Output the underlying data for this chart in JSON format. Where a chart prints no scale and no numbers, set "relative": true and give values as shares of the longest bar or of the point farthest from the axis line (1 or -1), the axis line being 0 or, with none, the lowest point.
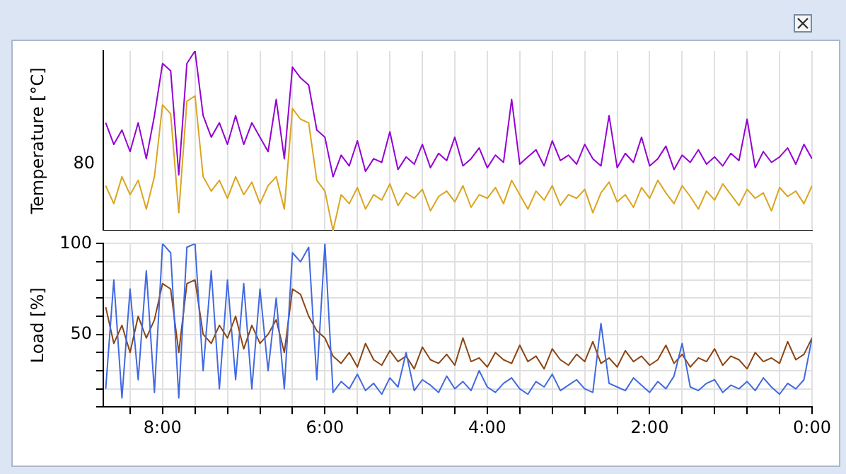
{
  "chart_data": [
    {
      "type": "line",
      "ylabel": "Temperature [°C]",
      "relative": true,
      "annotations": [
        "80"
      ],
      "grid": "x",
      "legend": false,
      "tick_labels": "y",
      "marker": "none",
      "line_style": "solid",
      "x": [
        8.7,
        8.6,
        8.5,
        8.4,
        8.3,
        8.2,
        8.1,
        8.0,
        7.9,
        7.8,
        7.7,
        7.6,
        7.5,
        7.4,
        7.3,
        7.2,
        7.1,
        7.0,
        6.9,
        6.8,
        6.7,
        6.6,
        6.5,
        6.4,
        6.3,
        6.2,
        6.1,
        6.0,
        5.9,
        5.8,
        5.7,
        5.6,
        5.5,
        5.4,
        5.3,
        5.2,
        5.1,
        5.0,
        4.9,
        4.8,
        4.7,
        4.6,
        4.5,
        4.4,
        4.3,
        4.2,
        4.1,
        4.0,
        3.9,
        3.8,
        3.7,
        3.6,
        3.5,
        3.4,
        3.3,
        3.2,
        3.1,
        3.0,
        2.9,
        2.8,
        2.7,
        2.6,
        2.5,
        2.4,
        2.3,
        2.2,
        2.1,
        2.0,
        1.9,
        1.8,
        1.7,
        1.6,
        1.5,
        1.4,
        1.3,
        1.2,
        1.1,
        1.0,
        0.9,
        0.8,
        0.7,
        0.6,
        0.5,
        0.4,
        0.3,
        0.2,
        0.1,
        0.0
      ],
      "xlim": [
        8.73,
        0
      ],
      "xticks": [
        {
          "value": 8.4,
          "label": null
        },
        {
          "value": 8,
          "label": null
        },
        {
          "value": 7.6,
          "label": null
        },
        {
          "value": 7.2,
          "label": null
        },
        {
          "value": 6.8,
          "label": null
        },
        {
          "value": 6.4,
          "label": null
        },
        {
          "value": 6,
          "label": null
        },
        {
          "value": 5.6,
          "label": null
        },
        {
          "value": 5.2,
          "label": null
        },
        {
          "value": 4.8,
          "label": null
        },
        {
          "value": 4.4,
          "label": null
        },
        {
          "value": 4,
          "label": null
        },
        {
          "value": 3.6,
          "label": null
        },
        {
          "value": 3.2,
          "label": null
        },
        {
          "value": 2.8,
          "label": null
        },
        {
          "value": 2.4,
          "label": null
        },
        {
          "value": 2,
          "label": null
        },
        {
          "value": 1.6,
          "label": null
        },
        {
          "value": 1.2,
          "label": null
        },
        {
          "value": 0.8,
          "label": null
        },
        {
          "value": 0.4,
          "label": null
        },
        {
          "value": 0,
          "label": null
        }
      ],
      "series": [
        {
          "color": "#daa520",
          "values": [
            0.25,
            0.15,
            0.3,
            0.2,
            0.28,
            0.12,
            0.3,
            0.7,
            0.65,
            0.1,
            0.72,
            0.75,
            0.3,
            0.22,
            0.28,
            0.18,
            0.3,
            0.2,
            0.27,
            0.15,
            0.25,
            0.3,
            0.12,
            0.68,
            0.62,
            0.6,
            0.28,
            0.22,
            0,
            0.2,
            0.15,
            0.24,
            0.12,
            0.2,
            0.17,
            0.26,
            0.14,
            0.21,
            0.18,
            0.23,
            0.11,
            0.19,
            0.22,
            0.16,
            0.25,
            0.13,
            0.2,
            0.18,
            0.24,
            0.15,
            0.28,
            0.2,
            0.12,
            0.22,
            0.17,
            0.25,
            0.14,
            0.2,
            0.18,
            0.23,
            0.1,
            0.21,
            0.27,
            0.16,
            0.2,
            0.13,
            0.24,
            0.18,
            0.28,
            0.21,
            0.15,
            0.25,
            0.19,
            0.12,
            0.22,
            0.17,
            0.26,
            0.2,
            0.14,
            0.23,
            0.18,
            0.21,
            0.11,
            0.24,
            0.19,
            0.22,
            0.15,
            0.25
          ]
        },
        {
          "color": "#9400d3",
          "values": [
            0.6,
            0.48,
            0.56,
            0.44,
            0.6,
            0.4,
            0.64,
            0.93,
            0.89,
            0.31,
            0.93,
            1,
            0.64,
            0.52,
            0.6,
            0.48,
            0.64,
            0.48,
            0.6,
            0.52,
            0.44,
            0.73,
            0.4,
            0.91,
            0.85,
            0.81,
            0.56,
            0.52,
            0.3,
            0.42,
            0.36,
            0.5,
            0.33,
            0.4,
            0.38,
            0.55,
            0.34,
            0.41,
            0.37,
            0.48,
            0.35,
            0.43,
            0.39,
            0.52,
            0.36,
            0.4,
            0.46,
            0.35,
            0.42,
            0.38,
            0.73,
            0.37,
            0.41,
            0.45,
            0.36,
            0.5,
            0.39,
            0.42,
            0.37,
            0.48,
            0.4,
            0.36,
            0.64,
            0.35,
            0.43,
            0.38,
            0.52,
            0.36,
            0.4,
            0.47,
            0.34,
            0.42,
            0.38,
            0.45,
            0.37,
            0.41,
            0.36,
            0.43,
            0.39,
            0.62,
            0.35,
            0.44,
            0.38,
            0.41,
            0.46,
            0.37,
            0.48,
            0.4
          ]
        }
      ]
    },
    {
      "type": "line",
      "ylabel": "Load [%]",
      "grid": true,
      "legend": false,
      "marker": "none",
      "line_style": "solid",
      "x": [
        8.7,
        8.6,
        8.5,
        8.4,
        8.3,
        8.2,
        8.1,
        8.0,
        7.9,
        7.8,
        7.7,
        7.6,
        7.5,
        7.4,
        7.3,
        7.2,
        7.1,
        7.0,
        6.9,
        6.8,
        6.7,
        6.6,
        6.5,
        6.4,
        6.3,
        6.2,
        6.1,
        6.0,
        5.9,
        5.8,
        5.7,
        5.6,
        5.5,
        5.4,
        5.3,
        5.2,
        5.1,
        5.0,
        4.9,
        4.8,
        4.7,
        4.6,
        4.5,
        4.4,
        4.3,
        4.2,
        4.1,
        4.0,
        3.9,
        3.8,
        3.7,
        3.6,
        3.5,
        3.4,
        3.3,
        3.2,
        3.1,
        3.0,
        2.9,
        2.8,
        2.7,
        2.6,
        2.5,
        2.4,
        2.3,
        2.2,
        2.1,
        2.0,
        1.9,
        1.8,
        1.7,
        1.6,
        1.5,
        1.4,
        1.3,
        1.2,
        1.1,
        1.0,
        0.9,
        0.8,
        0.7,
        0.6,
        0.5,
        0.4,
        0.3,
        0.2,
        0.1,
        0.0
      ],
      "xlim": [
        8.73,
        0
      ],
      "xticks": [
        {
          "value": 8.4,
          "label": null
        },
        {
          "value": 8,
          "label": "8:00"
        },
        {
          "value": 7.6,
          "label": null
        },
        {
          "value": 7.2,
          "label": null
        },
        {
          "value": 6.8,
          "label": null
        },
        {
          "value": 6.4,
          "label": null
        },
        {
          "value": 6,
          "label": "6:00"
        },
        {
          "value": 5.6,
          "label": null
        },
        {
          "value": 5.2,
          "label": null
        },
        {
          "value": 4.8,
          "label": null
        },
        {
          "value": 4.4,
          "label": null
        },
        {
          "value": 4,
          "label": "4:00"
        },
        {
          "value": 3.6,
          "label": null
        },
        {
          "value": 3.2,
          "label": null
        },
        {
          "value": 2.8,
          "label": null
        },
        {
          "value": 2.4,
          "label": null
        },
        {
          "value": 2,
          "label": "2:00"
        },
        {
          "value": 1.6,
          "label": null
        },
        {
          "value": 1.2,
          "label": null
        },
        {
          "value": 0.8,
          "label": null
        },
        {
          "value": 0.4,
          "label": null
        },
        {
          "value": 0,
          "label": "0:00"
        }
      ],
      "ylim": [
        10,
        100
      ],
      "yticks": [
        {
          "value": 10,
          "label": null
        },
        {
          "value": 20,
          "label": null
        },
        {
          "value": 30,
          "label": null
        },
        {
          "value": 40,
          "label": null
        },
        50,
        {
          "value": 60,
          "label": null
        },
        {
          "value": 70,
          "label": null
        },
        {
          "value": 80,
          "label": null
        },
        {
          "value": 90,
          "label": null
        },
        100
      ],
      "series": [
        {
          "color": "#8b4513",
          "values": [
            65,
            45,
            55,
            40,
            60,
            48,
            58,
            78,
            75,
            40,
            78,
            80,
            50,
            45,
            55,
            48,
            60,
            42,
            55,
            45,
            50,
            58,
            40,
            75,
            72,
            60,
            52,
            48,
            38,
            34,
            40,
            32,
            45,
            36,
            33,
            41,
            35,
            38,
            31,
            43,
            36,
            34,
            39,
            33,
            48,
            35,
            37,
            32,
            40,
            36,
            34,
            44,
            35,
            38,
            31,
            42,
            36,
            33,
            39,
            35,
            46,
            34,
            37,
            32,
            41,
            35,
            38,
            33,
            36,
            44,
            34,
            39,
            32,
            37,
            35,
            42,
            33,
            38,
            36,
            31,
            40,
            35,
            37,
            34,
            46,
            36,
            39,
            48
          ]
        },
        {
          "color": "#4169e1",
          "values": [
            20,
            80,
            15,
            75,
            25,
            85,
            18,
            100,
            95,
            15,
            98,
            100,
            30,
            85,
            20,
            80,
            25,
            78,
            20,
            75,
            30,
            70,
            20,
            95,
            90,
            98,
            25,
            100,
            18,
            24,
            20,
            28,
            19,
            23,
            17,
            26,
            21,
            40,
            19,
            25,
            22,
            18,
            27,
            20,
            24,
            19,
            30,
            21,
            18,
            23,
            26,
            20,
            17,
            24,
            21,
            28,
            19,
            22,
            25,
            20,
            18,
            56,
            23,
            21,
            19,
            26,
            22,
            18,
            24,
            20,
            27,
            45,
            21,
            19,
            23,
            25,
            18,
            22,
            20,
            24,
            19,
            26,
            21,
            17,
            23,
            20,
            25,
            48
          ]
        }
      ]
    }
  ]
}
